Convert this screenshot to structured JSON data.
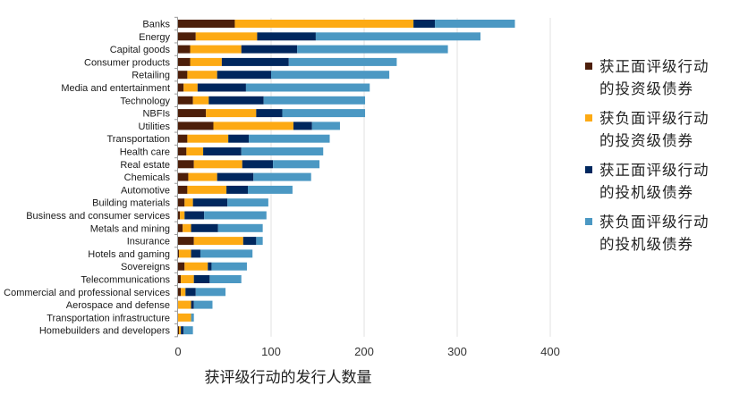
{
  "chart_data": {
    "type": "bar",
    "orientation": "horizontal",
    "stacked": true,
    "title": "",
    "xlabel": "获评级行动的发行人数量",
    "ylabel": "",
    "xlim": [
      0,
      400
    ],
    "xticks": [
      0,
      100,
      200,
      300,
      400
    ],
    "xtick_labels": [
      "0",
      "100",
      "200",
      "300",
      "400"
    ],
    "grid": "vertical",
    "legend_position": "right",
    "categories": [
      "Banks",
      "Energy",
      "Capital goods",
      "Consumer products",
      "Retailing",
      "Media and entertainment",
      "Technology",
      "NBFIs",
      "Utilities",
      "Transportation",
      "Health care",
      "Real estate",
      "Chemicals",
      "Automotive",
      "Building materials",
      "Business and consumer services",
      "Metals and mining",
      "Insurance",
      "Hotels and gaming",
      "Sovereigns",
      "Telecommunications",
      "Commercial and professional services",
      "Aerospace and defense",
      "Transportation infrastructure",
      "Homebuilders and developers"
    ],
    "series": [
      {
        "name_line1": "获正面评级行动",
        "name_line2": "的投资级债券",
        "color": "#4d1f0a",
        "values": [
          61,
          19,
          13,
          13,
          10,
          6,
          16,
          30,
          38,
          10,
          9,
          17,
          11,
          10,
          7,
          2,
          5,
          17,
          1,
          7,
          3,
          3,
          0,
          0,
          1
        ]
      },
      {
        "name_line1": "获负面评级行动",
        "name_line2": "的投资级债券",
        "color": "#fdaa14",
        "values": [
          192,
          66,
          55,
          34,
          32,
          15,
          17,
          54,
          86,
          44,
          18,
          52,
          31,
          42,
          9,
          5,
          9,
          53,
          13,
          25,
          14,
          5,
          14,
          14,
          2
        ]
      },
      {
        "name_line1": "获正面评级行动",
        "name_line2": "的投机级债券",
        "color": "#00275e",
        "values": [
          23,
          63,
          60,
          72,
          58,
          52,
          59,
          28,
          20,
          22,
          41,
          33,
          39,
          23,
          37,
          21,
          29,
          14,
          10,
          4,
          17,
          11,
          3,
          0,
          3
        ]
      },
      {
        "name_line1": "获负面评级行动",
        "name_line2": "的投机级债券",
        "color": "#4b98c3",
        "values": [
          86,
          177,
          162,
          116,
          127,
          133,
          109,
          89,
          30,
          87,
          88,
          50,
          62,
          48,
          44,
          67,
          48,
          7,
          56,
          38,
          34,
          32,
          20,
          3,
          10
        ]
      }
    ]
  }
}
